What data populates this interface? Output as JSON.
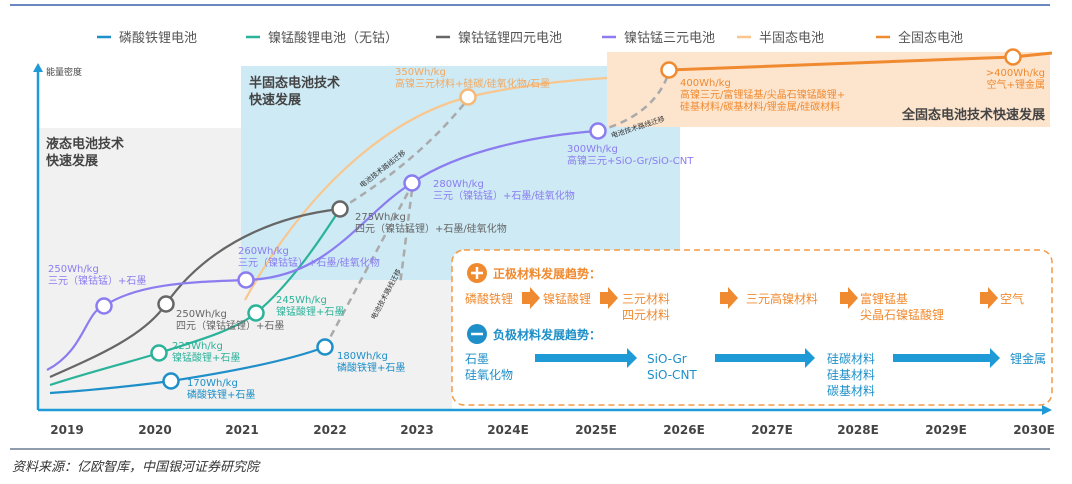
{
  "colors": {
    "lfp": "#1e8fc8",
    "lnmo": "#2bb39a",
    "quaternary": "#666666",
    "ncm": "#8b7cf0",
    "semi_solid": "#f9c68e",
    "all_solid": "#f08a30",
    "axis": "#1e9bd7",
    "pos_header": "#f08a30",
    "neg_header": "#1e8fc8"
  },
  "legend": [
    {
      "label": "磷酸铁锂电池",
      "color": "#1e8fc8"
    },
    {
      "label": "镍锰酸锂电池（无钴）",
      "color": "#2bb39a"
    },
    {
      "label": "镍钴锰锂四元电池",
      "color": "#666666"
    },
    {
      "label": "镍钴锰三元电池",
      "color": "#8b7cf0"
    },
    {
      "label": "半固态电池",
      "color": "#f9c68e"
    },
    {
      "label": "全固态电池",
      "color": "#f08a30"
    }
  ],
  "y_axis_label": "能量密度",
  "x_ticks": [
    "2019",
    "2020",
    "2021",
    "2022",
    "2023",
    "2024E",
    "2025E",
    "2026E",
    "2027E",
    "2028E",
    "2029E",
    "2030E"
  ],
  "regions": {
    "liquid": [
      "液态电池技术",
      "快速发展"
    ],
    "semi": [
      "半固态电池技术",
      "快速发展"
    ],
    "solid": "全固态电池技术快速发展"
  },
  "migration_label": "电池技术路线迁移",
  "points": {
    "lfp_170": [
      "170Wh/kg",
      "磷酸铁锂+石墨"
    ],
    "lfp_180": [
      "180Wh/kg",
      "磷酸铁锂+石墨"
    ],
    "lnmo_225": [
      "225Wh/kg",
      "镍锰酸锂+石墨"
    ],
    "lnmo_245": [
      "245Wh/kg",
      "镍锰酸锂+石墨"
    ],
    "quat_250": [
      "250Wh/kg",
      "四元（镍钴锰锂）+石墨"
    ],
    "quat_275": [
      "275Wh/kg",
      "四元（镍钴锰锂）+石墨/硅氧化物"
    ],
    "ncm_250": [
      "250Wh/kg",
      "三元（镍钴锰）+石墨"
    ],
    "ncm_260": [
      "260Wh/kg",
      "三元（镍钴锰）+石墨/硅氧化物"
    ],
    "ncm_280": [
      "280Wh/kg",
      "三元（镍钴锰）+石墨/硅氧化物"
    ],
    "ncm_300": [
      "300Wh/kg",
      "高镍三元+SiO-Gr/SiO-CNT"
    ],
    "semi_350": [
      "350Wh/kg",
      "高镍三元材料+硅碳/硅氧化物/石墨"
    ],
    "solid_400": [
      "400Wh/kg",
      "高镍三元/富锂锰基/尖晶石镍锰酸锂+",
      "硅基材料/碳基材料/锂金属/硅碳材料"
    ],
    "solid_400plus": [
      ">400Wh/kg",
      "空气+锂金属"
    ]
  },
  "trend_box": {
    "positive_header": "正极材料发展趋势：",
    "positive_steps": [
      [
        "磷酸铁锂"
      ],
      [
        "镍锰酸锂"
      ],
      [
        "三元材料",
        "四元材料"
      ],
      [
        "三元高镍材料"
      ],
      [
        "富锂锰基",
        "尖晶石镍锰酸锂"
      ],
      [
        "空气"
      ]
    ],
    "negative_header": "负极材料发展趋势：",
    "negative_steps": [
      [
        "石墨",
        "硅氧化物"
      ],
      [
        "SiO-Gr",
        "SiO-CNT"
      ],
      [
        "硅碳材料",
        "硅基材料",
        "碳基材料"
      ],
      [
        "锂金属"
      ]
    ]
  },
  "source": "资料来源：亿欧智库，中国银河证券研究院"
}
